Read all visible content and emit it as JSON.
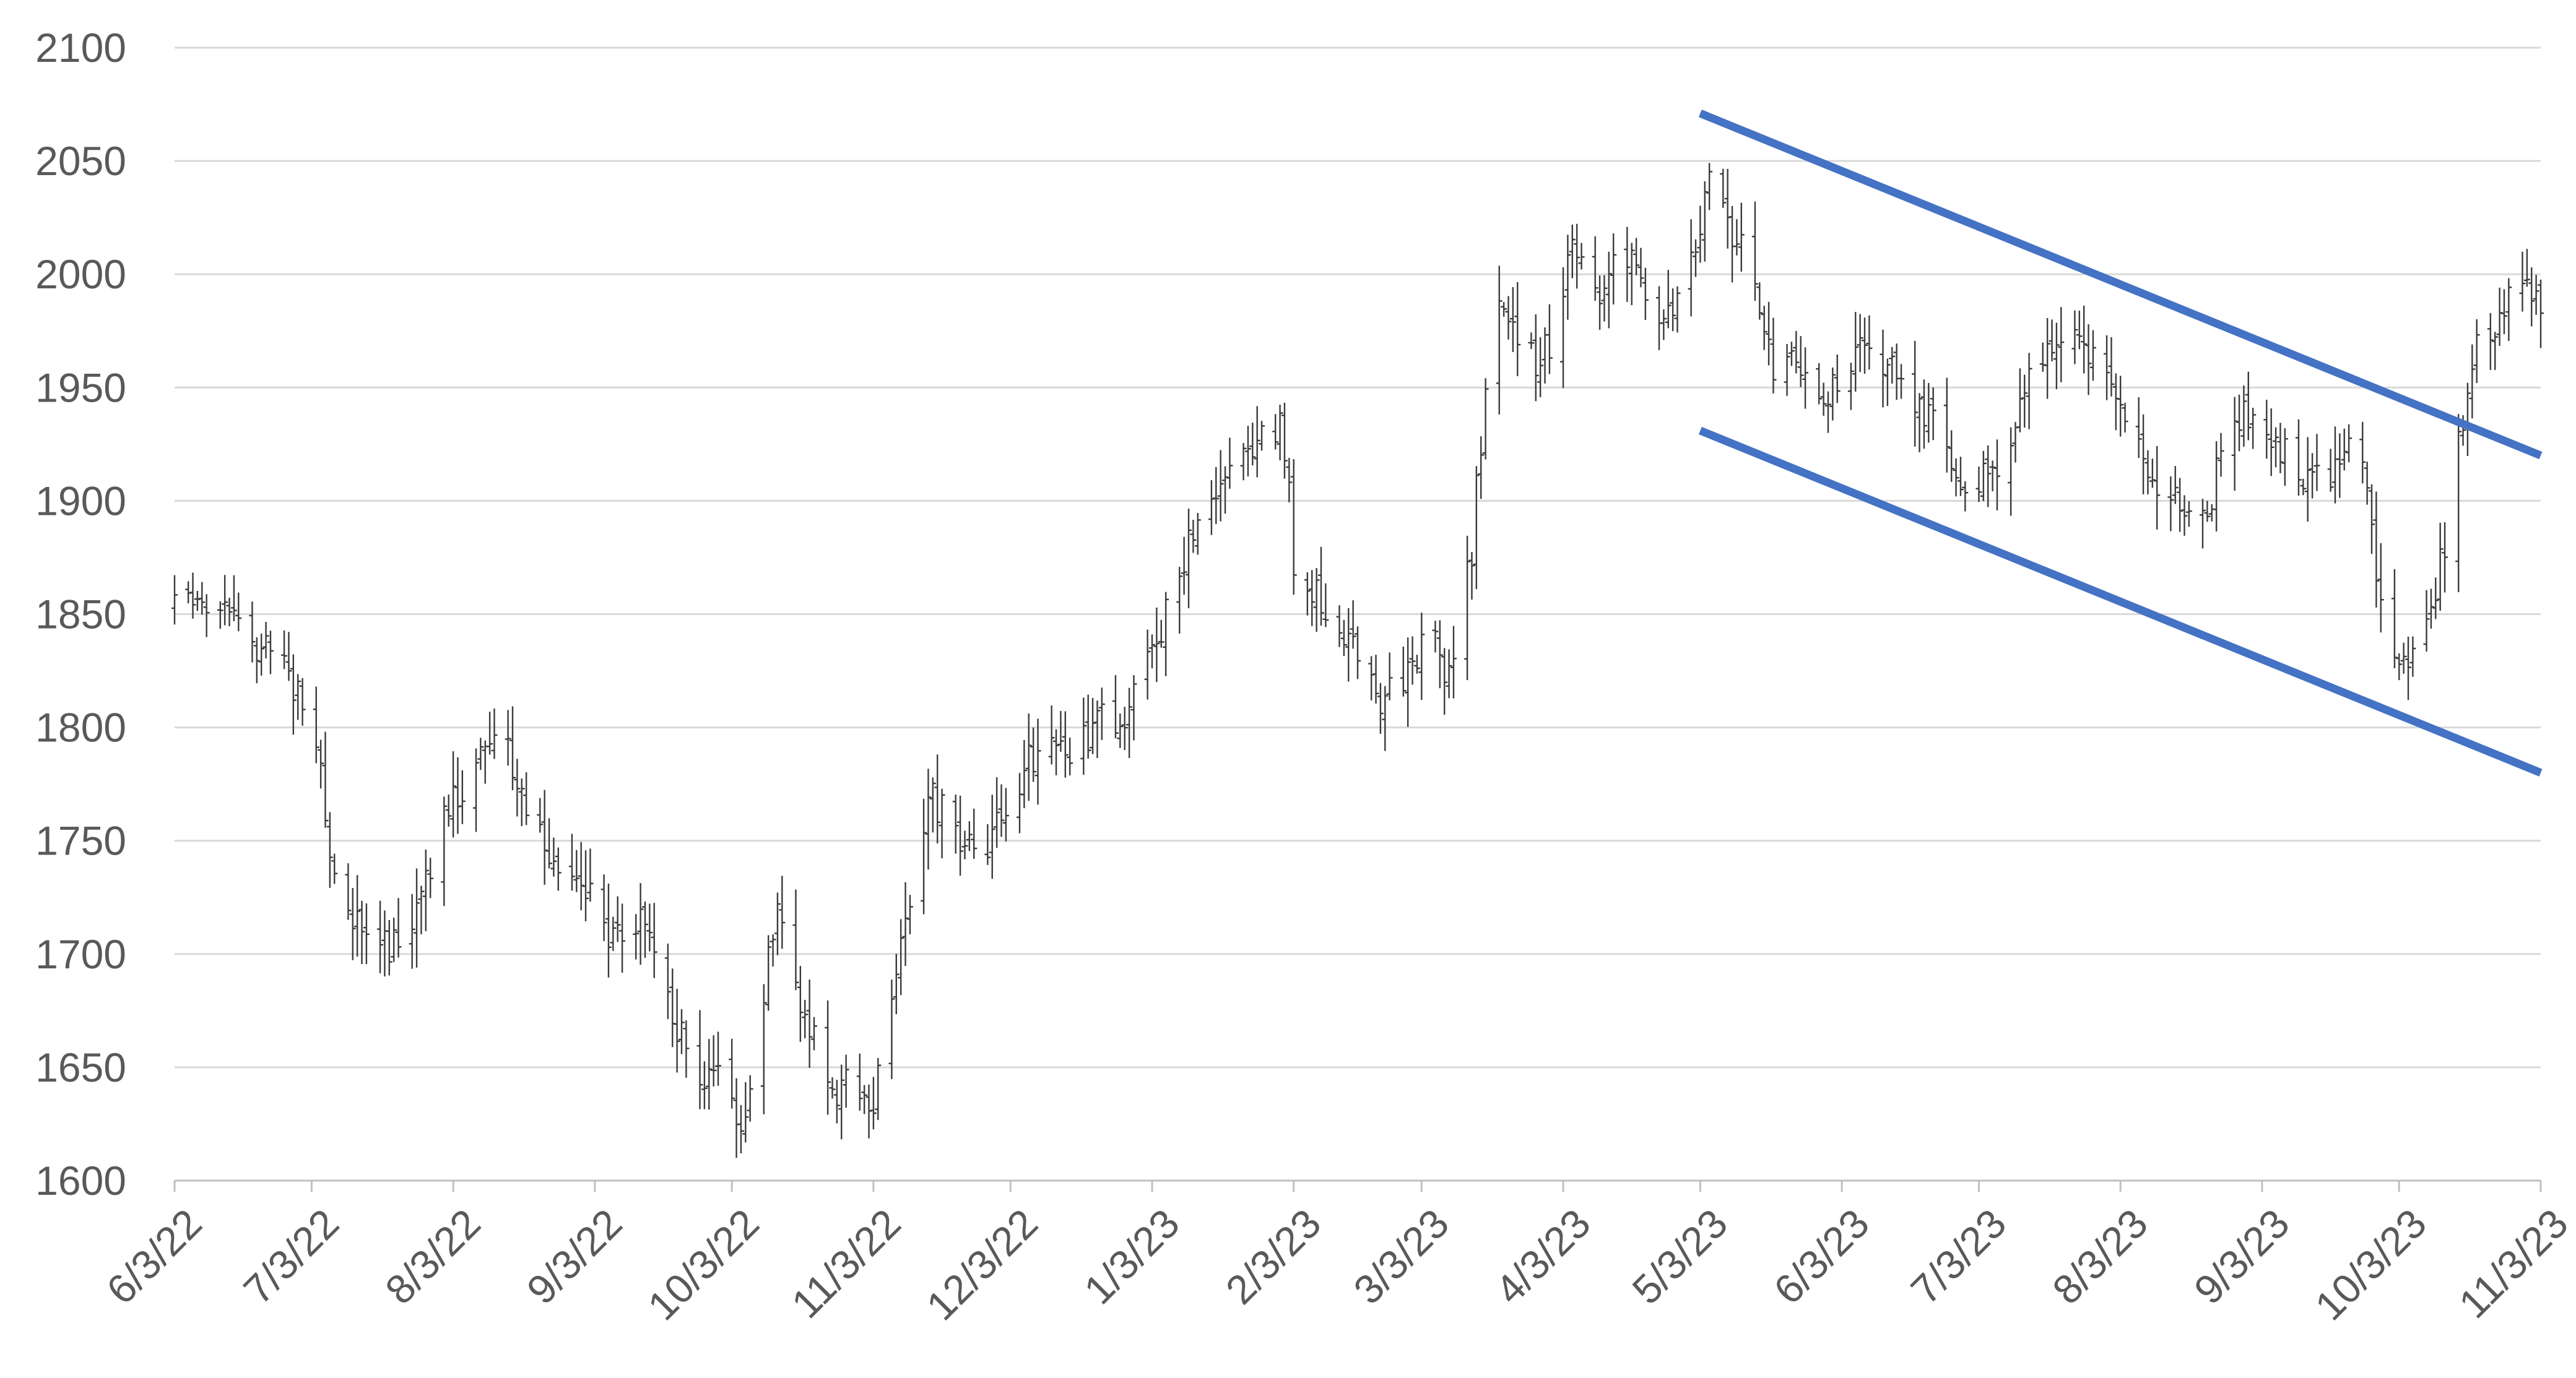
{
  "chart_data": {
    "type": "ohlc",
    "title": "",
    "xlabel": "",
    "ylabel": "",
    "ylim": [
      1600,
      2100
    ],
    "y_ticks": [
      1600,
      1650,
      1700,
      1750,
      1800,
      1850,
      1900,
      1950,
      2000,
      2050,
      2100
    ],
    "x_tick_labels": [
      "6/3/22",
      "7/3/22",
      "8/3/22",
      "9/3/22",
      "10/3/22",
      "11/3/22",
      "12/3/22",
      "1/3/23",
      "2/3/23",
      "3/3/23",
      "4/3/23",
      "5/3/23",
      "6/3/23",
      "7/3/23",
      "8/3/23",
      "9/3/23",
      "10/3/23",
      "11/3/23"
    ],
    "x_range": [
      "2022-06-03",
      "2023-11-03"
    ],
    "grid": "horizontal",
    "legend": "none",
    "series_color": "#3a3a3a",
    "price_path": [
      [
        "2022-06-03",
        1852
      ],
      [
        "2022-06-08",
        1850
      ],
      [
        "2022-06-14",
        1858
      ],
      [
        "2022-06-17",
        1840
      ],
      [
        "2022-06-22",
        1835
      ],
      [
        "2022-06-28",
        1825
      ],
      [
        "2022-07-01",
        1805
      ],
      [
        "2022-07-05",
        1780
      ],
      [
        "2022-07-07",
        1740
      ],
      [
        "2022-07-14",
        1712
      ],
      [
        "2022-07-20",
        1705
      ],
      [
        "2022-07-22",
        1712
      ],
      [
        "2022-07-27",
        1720
      ],
      [
        "2022-08-01",
        1760
      ],
      [
        "2022-08-05",
        1775
      ],
      [
        "2022-08-10",
        1790
      ],
      [
        "2022-08-15",
        1795
      ],
      [
        "2022-08-18",
        1770
      ],
      [
        "2022-08-24",
        1745
      ],
      [
        "2022-08-29",
        1740
      ],
      [
        "2022-09-02",
        1725
      ],
      [
        "2022-09-07",
        1705
      ],
      [
        "2022-09-13",
        1712
      ],
      [
        "2022-09-16",
        1700
      ],
      [
        "2022-09-21",
        1670
      ],
      [
        "2022-09-26",
        1645
      ],
      [
        "2022-09-29",
        1655
      ],
      [
        "2022-10-04",
        1625
      ],
      [
        "2022-10-07",
        1640
      ],
      [
        "2022-10-11",
        1700
      ],
      [
        "2022-10-14",
        1720
      ],
      [
        "2022-10-18",
        1680
      ],
      [
        "2022-10-21",
        1660
      ],
      [
        "2022-10-26",
        1640
      ],
      [
        "2022-10-31",
        1645
      ],
      [
        "2022-11-03",
        1630
      ],
      [
        "2022-11-04",
        1645
      ],
      [
        "2022-11-07",
        1680
      ],
      [
        "2022-11-10",
        1710
      ],
      [
        "2022-11-15",
        1770
      ],
      [
        "2022-11-18",
        1765
      ],
      [
        "2022-11-23",
        1745
      ],
      [
        "2022-11-28",
        1750
      ],
      [
        "2022-12-02",
        1760
      ],
      [
        "2022-12-07",
        1785
      ],
      [
        "2022-12-13",
        1795
      ],
      [
        "2022-12-16",
        1780
      ],
      [
        "2022-12-21",
        1800
      ],
      [
        "2022-12-27",
        1805
      ],
      [
        "2022-12-30",
        1815
      ],
      [
        "2023-01-04",
        1840
      ],
      [
        "2023-01-09",
        1870
      ],
      [
        "2023-01-13",
        1895
      ],
      [
        "2023-01-18",
        1910
      ],
      [
        "2023-01-23",
        1925
      ],
      [
        "2023-01-26",
        1930
      ],
      [
        "2023-01-31",
        1935
      ],
      [
        "2023-02-02",
        1915
      ],
      [
        "2023-02-03",
        1870
      ],
      [
        "2023-02-07",
        1860
      ],
      [
        "2023-02-13",
        1845
      ],
      [
        "2023-02-17",
        1830
      ],
      [
        "2023-02-22",
        1815
      ],
      [
        "2023-02-27",
        1818
      ],
      [
        "2023-03-02",
        1830
      ],
      [
        "2023-03-06",
        1845
      ],
      [
        "2023-03-09",
        1820
      ],
      [
        "2023-03-14",
        1880
      ],
      [
        "2023-03-17",
        1950
      ],
      [
        "2023-03-20",
        1980
      ],
      [
        "2023-03-24",
        1975
      ],
      [
        "2023-03-29",
        1960
      ],
      [
        "2023-04-03",
        1990
      ],
      [
        "2023-04-05",
        2020
      ],
      [
        "2023-04-11",
        1995
      ],
      [
        "2023-04-14",
        2010
      ],
      [
        "2023-04-19",
        2000
      ],
      [
        "2023-04-24",
        1985
      ],
      [
        "2023-04-28",
        1990
      ],
      [
        "2023-05-03",
        2020
      ],
      [
        "2023-05-04",
        2045
      ],
      [
        "2023-05-08",
        2025
      ],
      [
        "2023-05-12",
        2015
      ],
      [
        "2023-05-15",
        1990
      ],
      [
        "2023-05-19",
        1960
      ],
      [
        "2023-05-24",
        1960
      ],
      [
        "2023-05-30",
        1945
      ],
      [
        "2023-06-02",
        1950
      ],
      [
        "2023-06-07",
        1965
      ],
      [
        "2023-06-12",
        1955
      ],
      [
        "2023-06-16",
        1955
      ],
      [
        "2023-06-21",
        1940
      ],
      [
        "2023-06-27",
        1915
      ],
      [
        "2023-06-30",
        1905
      ],
      [
        "2023-07-05",
        1915
      ],
      [
        "2023-07-10",
        1925
      ],
      [
        "2023-07-14",
        1955
      ],
      [
        "2023-07-20",
        1975
      ],
      [
        "2023-07-25",
        1965
      ],
      [
        "2023-07-28",
        1960
      ],
      [
        "2023-08-02",
        1940
      ],
      [
        "2023-08-07",
        1925
      ],
      [
        "2023-08-11",
        1910
      ],
      [
        "2023-08-16",
        1895
      ],
      [
        "2023-08-21",
        1895
      ],
      [
        "2023-08-25",
        1915
      ],
      [
        "2023-08-30",
        1940
      ],
      [
        "2023-09-05",
        1930
      ],
      [
        "2023-09-08",
        1920
      ],
      [
        "2023-09-13",
        1910
      ],
      [
        "2023-09-18",
        1915
      ],
      [
        "2023-09-21",
        1925
      ],
      [
        "2023-09-25",
        1915
      ],
      [
        "2023-09-28",
        1870
      ],
      [
        "2023-10-02",
        1830
      ],
      [
        "2023-10-05",
        1820
      ],
      [
        "2023-10-09",
        1845
      ],
      [
        "2023-10-13",
        1880
      ],
      [
        "2023-10-16",
        1925
      ],
      [
        "2023-10-18",
        1940
      ],
      [
        "2023-10-20",
        1970
      ],
      [
        "2023-10-24",
        1975
      ],
      [
        "2023-10-27",
        1995
      ],
      [
        "2023-10-31",
        1990
      ],
      [
        "2023-11-03",
        1988
      ]
    ],
    "annotations": [
      {
        "type": "trendline",
        "color": "#4472c4",
        "from": [
          "2023-05-03",
          2071
        ],
        "to": [
          "2023-11-03",
          1920
        ]
      },
      {
        "type": "trendline",
        "color": "#4472c4",
        "from": [
          "2023-05-03",
          1931
        ],
        "to": [
          "2023-11-03",
          1780
        ]
      }
    ]
  }
}
